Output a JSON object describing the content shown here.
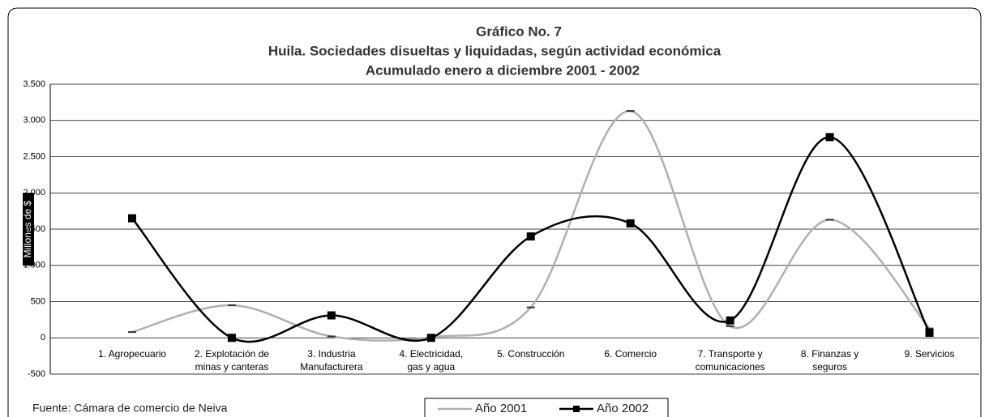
{
  "chart_data": {
    "type": "line",
    "title": [
      "Gráfico No. 7",
      "Huila. Sociedades disueltas y liquidadas, según actividad económica",
      "Acumulado enero a diciembre 2001 - 2002"
    ],
    "y_label": "Millones de $",
    "source": "Fuente:   Cámara de comercio de Neiva",
    "categories": [
      "1. Agropecuario",
      "2. Explotación de\nminas y canteras",
      "3. Industria\nManufacturera",
      "4. Electricidad,\ngas y agua",
      "5. Construcción",
      "6. Comercio",
      "7. Transporte y\ncomunicaciones",
      "8. Finanzas y\nseguros",
      "9. Servicios"
    ],
    "series": [
      {
        "name": "Año 2001",
        "color": "#b0b0b0",
        "values": [
          80,
          450,
          20,
          10,
          420,
          3130,
          160,
          1630,
          130
        ]
      },
      {
        "name": "Año 2002",
        "color": "#000000",
        "values": [
          1650,
          0,
          310,
          0,
          1400,
          1580,
          240,
          2770,
          70
        ]
      }
    ],
    "ylim": [
      -500,
      3500
    ],
    "yticks": [
      -500,
      0,
      500,
      {
        "value": 1000,
        "label": "1.000"
      },
      {
        "value": 1500,
        "label": "1.500"
      },
      {
        "value": 2000,
        "label": "2.000"
      },
      {
        "value": 2500,
        "label": "2.500"
      },
      {
        "value": 3000,
        "label": "3.000"
      },
      {
        "value": 3500,
        "label": "3.500"
      }
    ],
    "grid": true,
    "smooth": true,
    "legend": "bottom"
  }
}
